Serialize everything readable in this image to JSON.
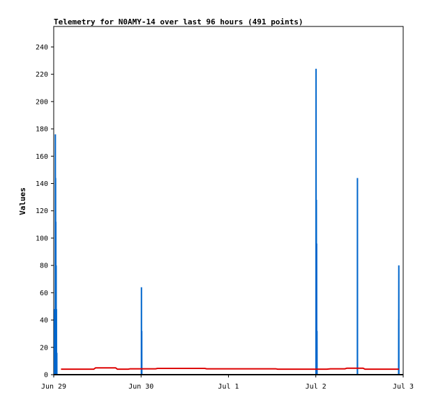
{
  "chart_data": {
    "type": "line",
    "title": "Telemetry for N0AMY-14 over last 96 hours (491 points)",
    "xlabel": "",
    "ylabel": "Values",
    "xlim": [
      "2023-06-29T00:00",
      "2023-07-03T00:00"
    ],
    "ylim": [
      0,
      255
    ],
    "x_ticks": [
      {
        "label": "Jun 29",
        "value": "2023-06-29T00:00"
      },
      {
        "label": "Jun 30",
        "value": "2023-06-30T00:00"
      },
      {
        "label": "Jul 1",
        "value": "2023-07-01T00:00"
      },
      {
        "label": "Jul 2",
        "value": "2023-07-02T00:00"
      },
      {
        "label": "Jul 3",
        "value": "2023-07-03T00:00"
      }
    ],
    "y_ticks": [
      0,
      20,
      40,
      60,
      80,
      100,
      120,
      140,
      160,
      180,
      200,
      220,
      240
    ],
    "grid": false,
    "series": [
      {
        "color": "#0066cc",
        "points": [
          [
            "2023-06-29T00:00",
            0
          ],
          [
            "2023-06-29T00:12",
            0
          ],
          [
            "2023-06-29T00:13",
            48
          ],
          [
            "2023-06-29T00:14",
            0
          ],
          [
            "2023-06-29T00:18",
            0
          ],
          [
            "2023-06-29T00:19",
            32
          ],
          [
            "2023-06-29T00:20",
            0
          ],
          [
            "2023-06-29T00:26",
            0
          ],
          [
            "2023-06-29T00:27",
            176
          ],
          [
            "2023-06-29T00:28",
            0
          ],
          [
            "2023-06-29T00:30",
            0
          ],
          [
            "2023-06-29T00:31",
            144
          ],
          [
            "2023-06-29T00:32",
            0
          ],
          [
            "2023-06-29T00:34",
            0
          ],
          [
            "2023-06-29T00:35",
            112
          ],
          [
            "2023-06-29T00:36",
            0
          ],
          [
            "2023-06-29T00:39",
            0
          ],
          [
            "2023-06-29T00:40",
            80
          ],
          [
            "2023-06-29T00:41",
            0
          ],
          [
            "2023-06-29T00:44",
            0
          ],
          [
            "2023-06-29T00:45",
            48
          ],
          [
            "2023-06-29T00:46",
            0
          ],
          [
            "2023-06-29T00:50",
            0
          ],
          [
            "2023-06-29T00:51",
            16
          ],
          [
            "2023-06-29T00:52",
            0
          ],
          [
            "2023-06-29T02:00",
            0
          ],
          [
            "2023-06-29T12:00",
            0
          ],
          [
            "2023-06-29T23:00",
            0
          ],
          [
            "2023-06-30T00:05",
            0
          ],
          [
            "2023-06-30T00:06",
            64
          ],
          [
            "2023-06-30T00:07",
            0
          ],
          [
            "2023-06-30T00:10",
            0
          ],
          [
            "2023-06-30T00:11",
            32
          ],
          [
            "2023-06-30T00:12",
            0
          ],
          [
            "2023-06-30T12:00",
            0
          ],
          [
            "2023-07-01T00:00",
            0
          ],
          [
            "2023-07-01T12:00",
            0
          ],
          [
            "2023-07-01T23:50",
            0
          ],
          [
            "2023-07-02T00:03",
            0
          ],
          [
            "2023-07-02T00:04",
            224
          ],
          [
            "2023-07-02T00:05",
            0
          ],
          [
            "2023-07-02T00:08",
            0
          ],
          [
            "2023-07-02T00:09",
            128
          ],
          [
            "2023-07-02T00:10",
            0
          ],
          [
            "2023-07-02T00:13",
            0
          ],
          [
            "2023-07-02T00:14",
            96
          ],
          [
            "2023-07-02T00:15",
            0
          ],
          [
            "2023-07-02T00:18",
            0
          ],
          [
            "2023-07-02T00:19",
            32
          ],
          [
            "2023-07-02T00:20",
            0
          ],
          [
            "2023-07-02T06:00",
            0
          ],
          [
            "2023-07-02T11:25",
            0
          ],
          [
            "2023-07-02T11:26",
            144
          ],
          [
            "2023-07-02T11:27",
            0
          ],
          [
            "2023-07-02T19:50",
            0
          ],
          [
            "2023-07-02T22:45",
            0
          ],
          [
            "2023-07-02T22:46",
            40
          ],
          [
            "2023-07-02T22:47",
            40
          ],
          [
            "2023-07-02T22:48",
            80
          ],
          [
            "2023-07-02T22:49",
            0
          ],
          [
            "2023-07-02T23:00",
            0
          ]
        ]
      },
      {
        "color": "#dd0000",
        "points": [
          [
            "2023-06-29T02:00",
            4
          ],
          [
            "2023-06-29T11:00",
            4
          ],
          [
            "2023-06-29T11:30",
            5
          ],
          [
            "2023-06-29T17:00",
            5
          ],
          [
            "2023-06-29T17:30",
            4
          ],
          [
            "2023-06-29T20:30",
            4
          ],
          [
            "2023-06-29T21:00",
            4.3
          ],
          [
            "2023-06-30T04:00",
            4.3
          ],
          [
            "2023-06-30T04:30",
            4.6
          ],
          [
            "2023-06-30T17:30",
            4.6
          ],
          [
            "2023-06-30T18:00",
            4.3
          ],
          [
            "2023-07-01T13:00",
            4.3
          ],
          [
            "2023-07-01T13:30",
            4
          ],
          [
            "2023-07-02T03:00",
            4
          ],
          [
            "2023-07-02T04:00",
            4.3
          ],
          [
            "2023-07-02T08:00",
            4.3
          ],
          [
            "2023-07-02T08:30",
            4.7
          ],
          [
            "2023-07-02T13:00",
            4.7
          ],
          [
            "2023-07-02T13:30",
            4
          ],
          [
            "2023-07-02T22:50",
            4
          ]
        ]
      }
    ]
  }
}
